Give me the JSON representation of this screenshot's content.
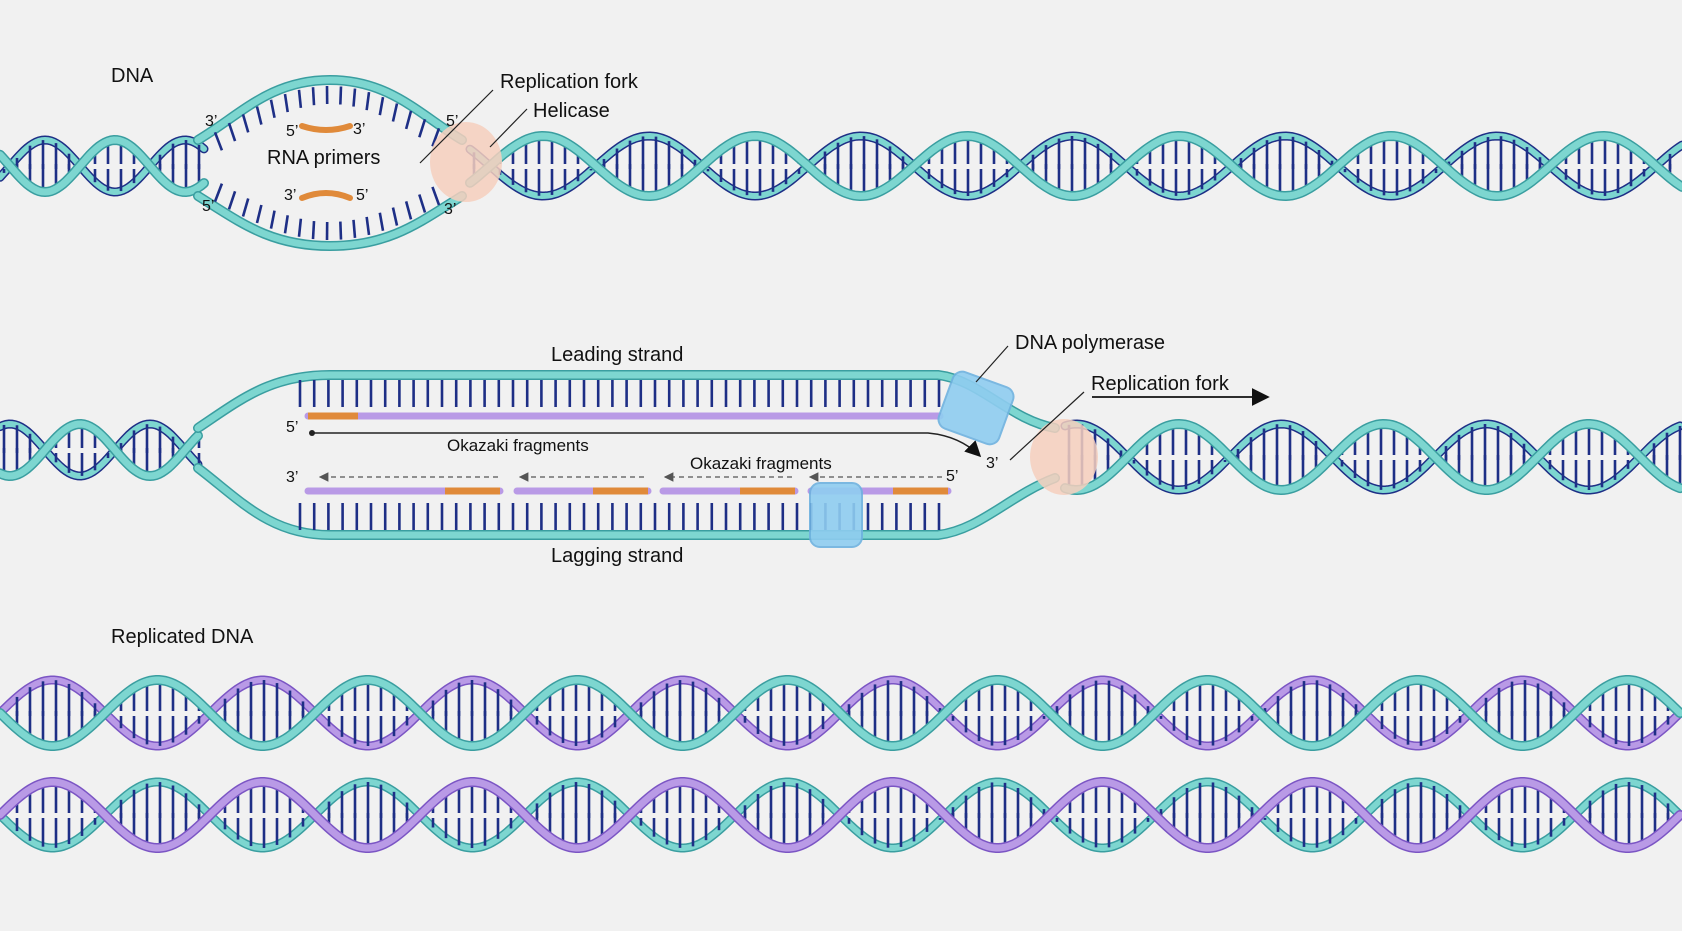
{
  "colors": {
    "background": "#f1f1f1",
    "parent_strand": "#7dd6d0",
    "parent_strand_edge": "#3a9ea0",
    "new_strand": "#b99ae6",
    "new_strand_edge": "#7b55c4",
    "base_pairs": "#1e2f86",
    "rna_primer": "#e08a3a",
    "helicase": "#f6cfbd",
    "polymerase": "#8fcdf0"
  },
  "panel1": {
    "title": "DNA",
    "replication_fork": "Replication fork",
    "helicase": "Helicase",
    "rna_primers": "RNA primers",
    "ends": {
      "top_left": "3’",
      "bottom_left": "5’",
      "top_right": "5’",
      "bottom_right": "3’"
    },
    "primer_top_left": "5’",
    "primer_top_right": "3’",
    "primer_bottom_left": "3’",
    "primer_bottom_right": "5’"
  },
  "panel2": {
    "leading_strand": "Leading strand",
    "lagging_strand": "Lagging strand",
    "dna_polymerase": "DNA polymerase",
    "replication_fork": "Replication fork",
    "okazaki_1": "Okazaki fragments",
    "okazaki_2": "Okazaki fragments",
    "leading_start": "5’",
    "leading_end": "3’",
    "lagging_left": "3’",
    "lagging_right": "5’"
  },
  "panel3": {
    "title": "Replicated DNA"
  }
}
